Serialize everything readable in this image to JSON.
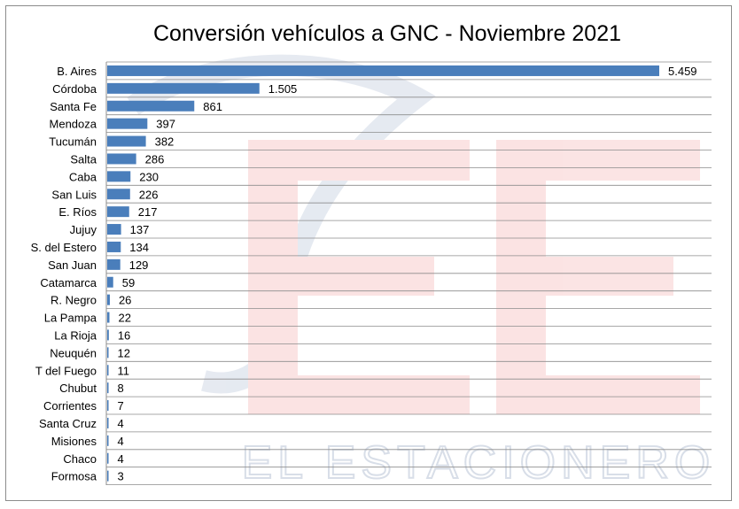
{
  "chart_data": {
    "type": "bar",
    "orientation": "horizontal",
    "title": "Conversión vehículos a GNC - Noviembre 2021",
    "categories": [
      "B. Aires",
      "Córdoba",
      "Santa Fe",
      "Mendoza",
      "Tucumán",
      "Salta",
      "Caba",
      "San Luis",
      "E. Ríos",
      "Jujuy",
      "S. del Estero",
      "San Juan",
      "Catamarca",
      "R. Negro",
      "La Pampa",
      "La Rioja",
      "Neuquén",
      "T del Fuego",
      "Chubut",
      "Corrientes",
      "Santa Cruz",
      "Misiones",
      "Chaco",
      "Formosa"
    ],
    "values": [
      5459,
      1505,
      861,
      397,
      382,
      286,
      230,
      226,
      217,
      137,
      134,
      129,
      59,
      26,
      22,
      16,
      12,
      11,
      8,
      7,
      4,
      4,
      4,
      3
    ],
    "value_labels": [
      "5.459",
      "1.505",
      "861",
      "397",
      "382",
      "286",
      "230",
      "226",
      "217",
      "137",
      "134",
      "129",
      "59",
      "26",
      "22",
      "16",
      "12",
      "11",
      "8",
      "7",
      "4",
      "4",
      "4",
      "3"
    ],
    "xlim": [
      0,
      5459
    ],
    "grid": "horizontal row lines",
    "legend": "none",
    "bar_color": "#4a7ebb"
  },
  "watermark": {
    "logo_letters": "EE",
    "text": "EL ESTACIONERO"
  }
}
